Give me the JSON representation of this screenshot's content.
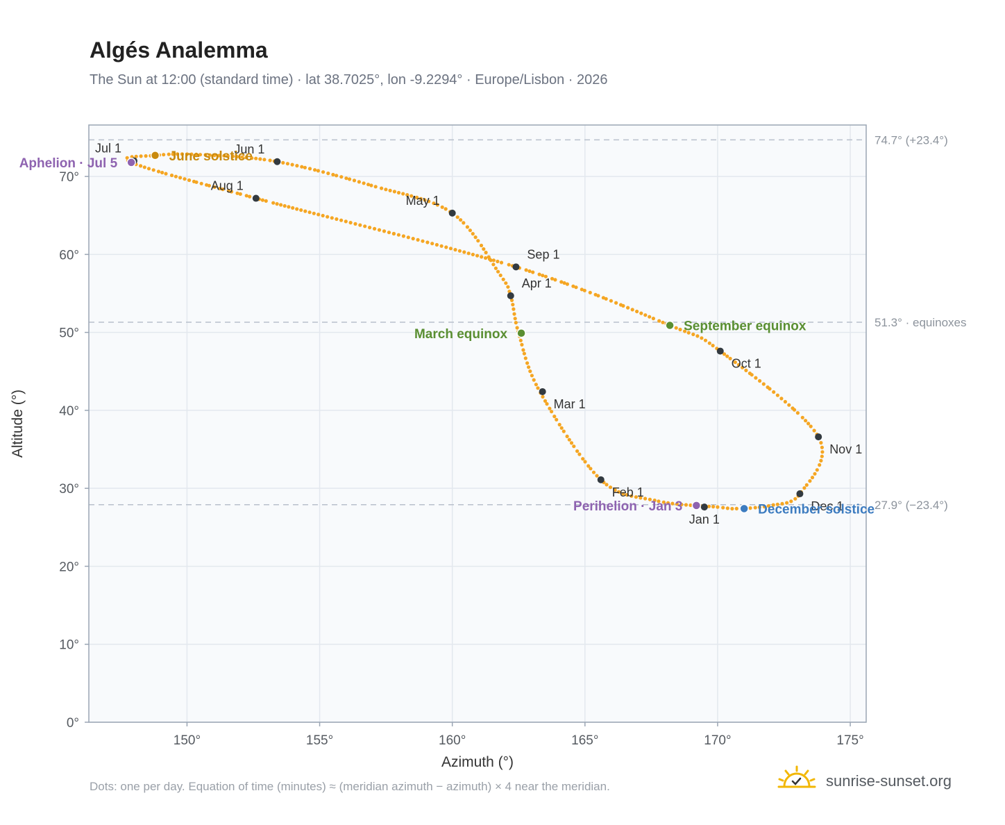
{
  "header": {
    "title": "Algés Analemma",
    "subtitle": "The Sun at 12:00 (standard time) · lat 38.7025°, lon -9.2294° · Europe/Lisbon · 2026"
  },
  "footer": {
    "note": "Dots: one per day. Equation of time (minutes) ≈ (meridian azimuth − azimuth) × 4 near the meridian.",
    "brand": "sunrise-sunset.org",
    "brand_icon": "sun-horizon-icon"
  },
  "chart_data": {
    "type": "scatter",
    "xlabel": "Azimuth (°)",
    "ylabel": "Altitude (°)",
    "xlim": [
      146.3,
      175.6
    ],
    "ylim": [
      0,
      76.6
    ],
    "x_ticks": [
      150,
      155,
      160,
      165,
      170,
      175
    ],
    "x_tick_labels": [
      "150°",
      "155°",
      "160°",
      "165°",
      "170°",
      "175°"
    ],
    "y_ticks": [
      0,
      10,
      20,
      30,
      40,
      50,
      60,
      70
    ],
    "y_tick_labels": [
      "0°",
      "10°",
      "20°",
      "30°",
      "40°",
      "50°",
      "60°",
      "70°"
    ],
    "grid": true,
    "reference_lines": [
      {
        "y": 74.7,
        "label": "74.7° (+23.4°)"
      },
      {
        "y": 51.3,
        "label": "51.3° · equinoxes"
      },
      {
        "y": 27.9,
        "label": "27.9° (−23.4°)"
      }
    ],
    "path_color": "#f5a623",
    "path_anchors": [
      [
        170.0,
        27.6
      ],
      [
        167.7,
        28.4
      ],
      [
        165.6,
        31.1
      ],
      [
        163.3,
        42.4
      ],
      [
        162.5,
        49.9
      ],
      [
        162.2,
        54.7
      ],
      [
        161.8,
        57.4
      ],
      [
        160.0,
        65.3
      ],
      [
        157.0,
        68.8
      ],
      [
        153.4,
        71.9
      ],
      [
        150.5,
        72.8
      ],
      [
        148.8,
        72.7
      ],
      [
        147.9,
        71.8
      ],
      [
        152.6,
        67.2
      ],
      [
        162.4,
        58.4
      ],
      [
        168.2,
        50.9
      ],
      [
        170.1,
        47.6
      ],
      [
        173.8,
        36.6
      ],
      [
        173.1,
        29.3
      ],
      [
        172.0,
        27.8
      ],
      [
        170.7,
        27.4
      ],
      [
        170.0,
        27.6
      ]
    ],
    "month_markers": [
      {
        "label": "Jan 1",
        "az": 169.5,
        "alt": 27.6,
        "anchor": "below"
      },
      {
        "label": "Feb 1",
        "az": 165.6,
        "alt": 31.1,
        "anchor": "below-right"
      },
      {
        "label": "Mar 1",
        "az": 163.4,
        "alt": 42.4,
        "anchor": "below-right"
      },
      {
        "label": "Apr 1",
        "az": 162.2,
        "alt": 54.7,
        "anchor": "above-right"
      },
      {
        "label": "May 1",
        "az": 160.0,
        "alt": 65.3,
        "anchor": "above-left"
      },
      {
        "label": "Jun 1",
        "az": 153.4,
        "alt": 71.9,
        "anchor": "above-left"
      },
      {
        "label": "Jul 1",
        "az": 148.0,
        "alt": 72.0,
        "anchor": "above-left"
      },
      {
        "label": "Aug 1",
        "az": 152.6,
        "alt": 67.2,
        "anchor": "above-left"
      },
      {
        "label": "Sep 1",
        "az": 162.4,
        "alt": 58.4,
        "anchor": "above-right"
      },
      {
        "label": "Oct 1",
        "az": 170.1,
        "alt": 47.6,
        "anchor": "below-right"
      },
      {
        "label": "Nov 1",
        "az": 173.8,
        "alt": 36.6,
        "anchor": "below-right"
      },
      {
        "label": "Dec 1",
        "az": 173.1,
        "alt": 29.3,
        "anchor": "below-right"
      }
    ],
    "events": [
      {
        "label": "Aphelion · Jul 5",
        "az": 147.9,
        "alt": 71.8,
        "color": "#8e63b0",
        "anchor": "left"
      },
      {
        "label": "June solstice",
        "az": 148.8,
        "alt": 72.7,
        "color": "#c98a0e",
        "anchor": "right"
      },
      {
        "label": "March equinox",
        "az": 162.6,
        "alt": 49.9,
        "color": "#5a8f32",
        "anchor": "left"
      },
      {
        "label": "September equinox",
        "az": 168.2,
        "alt": 50.9,
        "color": "#5a8f32",
        "anchor": "right"
      },
      {
        "label": "Perihelion · Jan 3",
        "az": 169.2,
        "alt": 27.8,
        "color": "#8e63b0",
        "anchor": "left"
      },
      {
        "label": "December solstice",
        "az": 171.0,
        "alt": 27.4,
        "color": "#3d7cc0",
        "anchor": "right"
      }
    ]
  }
}
